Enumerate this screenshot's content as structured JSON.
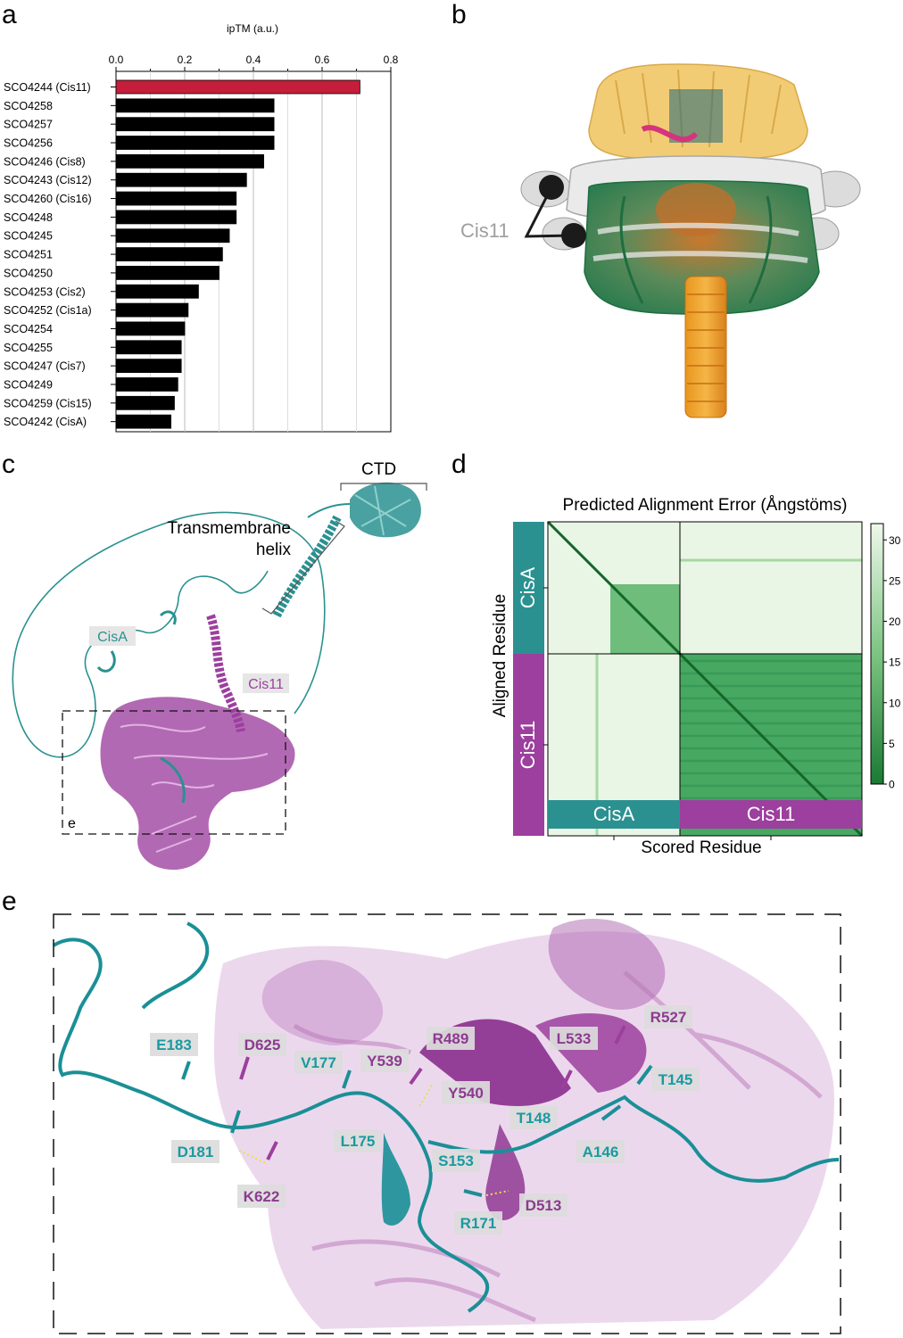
{
  "panel_labels": {
    "a": "a",
    "b": "b",
    "c": "c",
    "d": "d",
    "e": "e"
  },
  "colors": {
    "highlight_bar": "#c41e3a",
    "bar": "#000000",
    "cisA": "#2a9190",
    "cis11": "#9c3f9e",
    "pae_dark": "#1a7a34",
    "pae_light": "#eef8ea"
  },
  "chart_data": [
    {
      "type": "bar",
      "orientation": "horizontal",
      "title": "ipTM (a.u.)",
      "xlabel": "ipTM (a.u.)",
      "xlim": [
        0,
        0.8
      ],
      "ticks": [
        "0.0",
        "0.2",
        "0.4",
        "0.6",
        "0.8"
      ],
      "grid": true,
      "categories": [
        "SCO4244 (Cis11)",
        "SCO4258",
        "SCO4257",
        "SCO4256",
        "SCO4246 (Cis8)",
        "SCO4243 (Cis12)",
        "SCO4260 (Cis16)",
        "SCO4248",
        "SCO4245",
        "SCO4251",
        "SCO4250",
        "SCO4253 (Cis2)",
        "SCO4252 (Cis1a)",
        "SCO4254",
        "SCO4255",
        "SCO4247 (Cis7)",
        "SCO4249",
        "SCO4259 (Cis15)",
        "SCO4242 (CisA)"
      ],
      "values": [
        0.71,
        0.46,
        0.46,
        0.46,
        0.43,
        0.38,
        0.35,
        0.35,
        0.33,
        0.31,
        0.3,
        0.24,
        0.21,
        0.2,
        0.19,
        0.19,
        0.18,
        0.17,
        0.16
      ],
      "highlighted": [
        "SCO4244 (Cis11)"
      ]
    },
    {
      "type": "heatmap",
      "title": "Predicted Alignment Error (Ångstöms)",
      "xlabel": "Scored Residue",
      "ylabel": "Aligned Residue",
      "row_groups": [
        "CisA",
        "Cis11"
      ],
      "col_groups": [
        "CisA",
        "Cis11"
      ],
      "colorbar_ticks": [
        "0",
        "5",
        "10",
        "15",
        "20",
        "25",
        "30"
      ],
      "colorbar_range": [
        0,
        32
      ]
    }
  ],
  "panel_b": {
    "label": "Cis11"
  },
  "panel_c": {
    "ctd": "CTD",
    "tm_line1": "Transmembrane",
    "tm_line2": "helix",
    "cisA": "CisA",
    "cis11": "Cis11",
    "box_label": "e"
  },
  "panel_e": {
    "cisA_residues": [
      "E183",
      "V177",
      "D181",
      "L175",
      "S153",
      "R171",
      "T148",
      "A146",
      "T145"
    ],
    "cis11_residues": [
      "D625",
      "Y539",
      "R489",
      "Y540",
      "L533",
      "R527",
      "K622",
      "D513"
    ]
  }
}
